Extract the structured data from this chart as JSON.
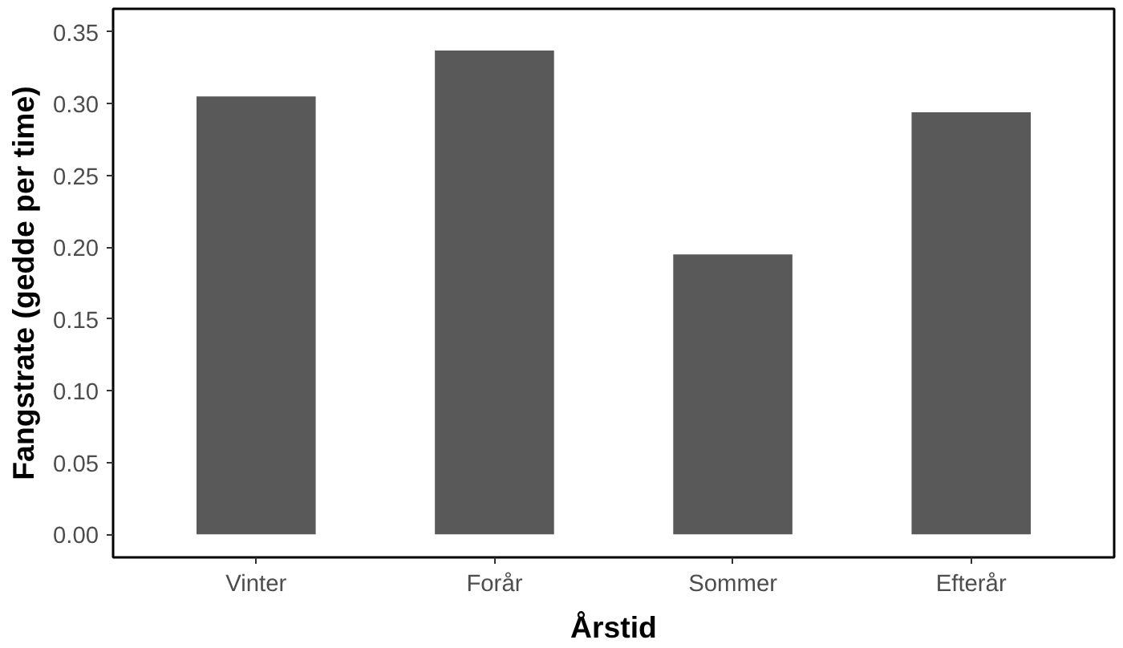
{
  "chart_data": {
    "type": "bar",
    "xlabel": "Årstid",
    "ylabel": "Fangstrate (gedde per time)",
    "categories": [
      "Vinter",
      "Forår",
      "Sommer",
      "Efterår"
    ],
    "values": [
      0.305,
      0.337,
      0.195,
      0.294
    ],
    "color": "#595959",
    "ylim": [
      -0.016,
      0.366
    ],
    "yticks": [
      {
        "value": 0,
        "label": "0.00"
      },
      {
        "value": 0.05,
        "label": "0.05"
      },
      {
        "value": 0.1,
        "label": "0.10"
      },
      {
        "value": 0.15,
        "label": "0.15"
      },
      {
        "value": 0.2,
        "label": "0.20"
      },
      {
        "value": 0.25,
        "label": "0.25"
      },
      {
        "value": 0.3,
        "label": "0.30"
      },
      {
        "value": 0.35,
        "label": "0.35"
      }
    ],
    "grid": false
  }
}
